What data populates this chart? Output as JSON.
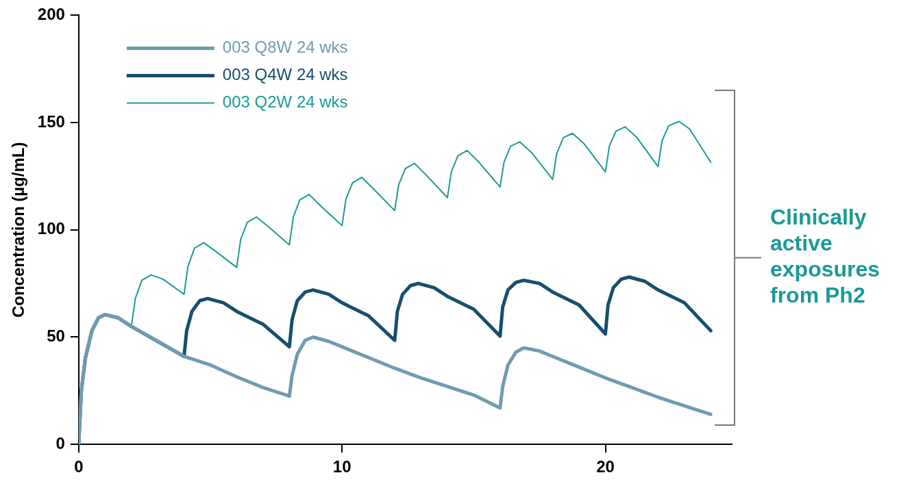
{
  "chart_data": {
    "type": "line",
    "ylabel": "Concentration (µg/mL)",
    "xlim": [
      0,
      24.8
    ],
    "xticks": [
      0,
      10,
      20
    ],
    "ylim": [
      0,
      200
    ],
    "yticks": [
      0,
      50,
      100,
      150,
      200
    ],
    "grid": false,
    "legend": "top left",
    "marker": "none",
    "line_style": "solid",
    "annotations": [
      "Clinically active exposures from Ph2"
    ],
    "series": [
      {
        "name": "003 Q8W 24 wks",
        "color": "#6f9bb0",
        "x": [
          0,
          0.1,
          0.25,
          0.5,
          0.75,
          1,
          1.5,
          2,
          3,
          4,
          5,
          6,
          7,
          8,
          8.1,
          8.3,
          8.6,
          8.9,
          9.5,
          10,
          11,
          12,
          13,
          14,
          15,
          16,
          16.1,
          16.3,
          16.6,
          16.9,
          17.5,
          18,
          19,
          20,
          21,
          22,
          23,
          24
        ],
        "values": [
          0,
          25,
          40,
          53,
          59,
          60.5,
          59,
          55,
          48,
          41,
          37,
          31.5,
          26.5,
          22.5,
          32,
          42,
          48.5,
          50,
          48,
          45.5,
          40.5,
          35.5,
          31,
          27,
          23,
          17,
          27,
          37,
          43,
          45,
          43.5,
          41,
          36,
          31,
          26.5,
          22,
          18,
          14
        ]
      },
      {
        "name": "003 Q4W 24 wks",
        "color": "#174f6e",
        "x": [
          0,
          0.1,
          0.25,
          0.5,
          0.75,
          1,
          1.5,
          2,
          3,
          4,
          4.1,
          4.3,
          4.6,
          4.9,
          5.5,
          6,
          7,
          8,
          8.1,
          8.3,
          8.6,
          8.9,
          9.5,
          10,
          11,
          12,
          12.1,
          12.3,
          12.6,
          12.9,
          13.5,
          14,
          15,
          16,
          16.1,
          16.3,
          16.6,
          16.9,
          17.5,
          18,
          19,
          20,
          20.1,
          20.3,
          20.6,
          20.9,
          21.5,
          22,
          23,
          24
        ],
        "values": [
          0,
          25,
          40,
          53,
          59,
          60.5,
          59,
          55,
          48,
          41,
          53,
          62,
          67,
          68,
          66,
          62,
          56,
          45.5,
          58,
          67,
          71,
          72,
          70,
          66,
          60,
          48.5,
          62,
          70,
          74,
          75,
          73,
          69,
          63,
          50.5,
          64,
          72,
          75.5,
          76.5,
          75,
          71,
          65,
          51.5,
          65,
          73,
          77,
          78,
          76,
          72,
          66,
          53
        ]
      },
      {
        "name": "003 Q2W 24 wks",
        "color": "#1a9a96",
        "x": [
          2,
          2.15,
          2.4,
          2.75,
          3.2,
          4,
          4.15,
          4.4,
          4.75,
          5.2,
          6,
          6.15,
          6.4,
          6.75,
          7.2,
          8,
          8.15,
          8.4,
          8.75,
          9.2,
          10,
          10.15,
          10.4,
          10.75,
          11.2,
          12,
          12.15,
          12.4,
          12.75,
          13.2,
          14,
          14.15,
          14.4,
          14.75,
          15.2,
          16,
          16.15,
          16.4,
          16.75,
          17.2,
          18,
          18.15,
          18.4,
          18.75,
          19.2,
          20,
          20.15,
          20.4,
          20.75,
          21.2,
          22,
          22.15,
          22.4,
          22.8,
          23.2,
          24
        ],
        "values": [
          55,
          68,
          76.5,
          79,
          77,
          70,
          83,
          91.5,
          94,
          90,
          82.5,
          95.5,
          103.5,
          106,
          101.5,
          93,
          106,
          114,
          116.5,
          111,
          102,
          114.5,
          122,
          124.5,
          119,
          109,
          121,
          128.5,
          131,
          125.5,
          115,
          127,
          134.5,
          137,
          131.5,
          120,
          131.5,
          139,
          141,
          136,
          123.5,
          135.5,
          143,
          145,
          140,
          127,
          139,
          146,
          148,
          143,
          129.5,
          141.5,
          148.5,
          150.5,
          147,
          131.5
        ]
      }
    ]
  }
}
